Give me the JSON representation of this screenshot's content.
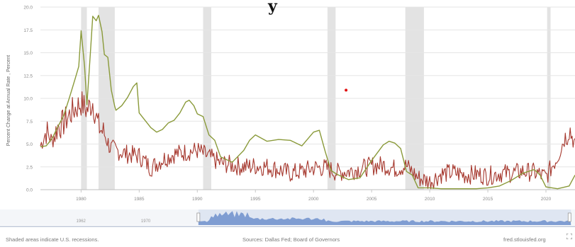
{
  "header": {
    "title_fragment": "y"
  },
  "chart_data": {
    "type": "line",
    "title": "",
    "xlabel": "",
    "ylabel": "Percent Change at Annual Rate , Percent",
    "xlim": [
      1976.5,
      2022.5
    ],
    "ylim": [
      0,
      20
    ],
    "yticks": [
      "0.0",
      "2.5",
      "5.0",
      "7.5",
      "10.0",
      "12.5",
      "15.0",
      "17.5",
      "20.0"
    ],
    "xticks": [
      "1980",
      "1985",
      "1990",
      "1995",
      "2000",
      "2005",
      "2010",
      "2015",
      "2020"
    ],
    "grid": "horizontal",
    "legend": "none",
    "recessions": [
      [
        1980.0,
        1980.5
      ],
      [
        1981.5,
        1982.9
      ],
      [
        1990.5,
        1991.2
      ],
      [
        2001.2,
        2001.9
      ],
      [
        2007.9,
        2009.5
      ],
      [
        2020.1,
        2020.4
      ]
    ],
    "series": [
      {
        "color": "#a6382e",
        "points": [
          [
            1976.5,
            4.8
          ],
          [
            1977,
            6.4
          ],
          [
            1977.5,
            5.3
          ],
          [
            1978,
            6.9
          ],
          [
            1978.5,
            7.3
          ],
          [
            1979,
            8.2
          ],
          [
            1979.5,
            8.9
          ],
          [
            1980,
            9.5
          ],
          [
            1980.5,
            8.7
          ],
          [
            1981,
            9.6
          ],
          [
            1981.5,
            6.9
          ],
          [
            1982,
            6.1
          ],
          [
            1982.5,
            4.6
          ],
          [
            1983,
            4.3
          ],
          [
            1983.5,
            4.1
          ],
          [
            1984,
            3.9
          ],
          [
            1985,
            3.7
          ],
          [
            1986,
            2.4
          ],
          [
            1987,
            3.3
          ],
          [
            1988,
            3.9
          ],
          [
            1989,
            4.1
          ],
          [
            1990,
            4.3
          ],
          [
            1991,
            3.6
          ],
          [
            1992,
            2.9
          ],
          [
            1993,
            2.7
          ],
          [
            1994,
            2.5
          ],
          [
            1995,
            2.6
          ],
          [
            1996,
            2.5
          ],
          [
            1997,
            2.2
          ],
          [
            1998,
            1.8
          ],
          [
            1999,
            2.0
          ],
          [
            2000,
            2.4
          ],
          [
            2001,
            2.4
          ],
          [
            2002,
            1.9
          ],
          [
            2003,
            2.0
          ],
          [
            2004,
            2.3
          ],
          [
            2005,
            2.6
          ],
          [
            2006,
            2.7
          ],
          [
            2007,
            2.3
          ],
          [
            2008,
            2.6
          ],
          [
            2009,
            1.3
          ],
          [
            2010,
            0.9
          ],
          [
            2011,
            1.7
          ],
          [
            2012,
            1.9
          ],
          [
            2013,
            1.6
          ],
          [
            2014,
            1.7
          ],
          [
            2015,
            1.5
          ],
          [
            2016,
            1.8
          ],
          [
            2017,
            1.8
          ],
          [
            2018,
            2.0
          ],
          [
            2019,
            1.9
          ],
          [
            2020,
            1.4
          ],
          [
            2021,
            3.6
          ],
          [
            2021.5,
            5.3
          ],
          [
            2022,
            6.8
          ],
          [
            2022.5,
            4.9
          ]
        ]
      },
      {
        "color": "#8a9a3a",
        "points": [
          [
            1976.5,
            4.7
          ],
          [
            1977,
            4.8
          ],
          [
            1977.5,
            5.6
          ],
          [
            1978,
            6.9
          ],
          [
            1978.5,
            8.1
          ],
          [
            1979,
            10.1
          ],
          [
            1979.5,
            12.2
          ],
          [
            1979.8,
            13.5
          ],
          [
            1980,
            17.4
          ],
          [
            1980.3,
            13.5
          ],
          [
            1980.5,
            9.3
          ],
          [
            1980.8,
            15.0
          ],
          [
            1981,
            19.0
          ],
          [
            1981.3,
            18.5
          ],
          [
            1981.5,
            19.1
          ],
          [
            1981.8,
            17.3
          ],
          [
            1982,
            14.8
          ],
          [
            1982.3,
            14.5
          ],
          [
            1982.6,
            10.9
          ],
          [
            1982.9,
            9.1
          ],
          [
            1983,
            8.7
          ],
          [
            1983.5,
            9.2
          ],
          [
            1984,
            10.1
          ],
          [
            1984.5,
            11.3
          ],
          [
            1984.8,
            11.7
          ],
          [
            1985,
            8.4
          ],
          [
            1986,
            6.8
          ],
          [
            1986.5,
            6.3
          ],
          [
            1987,
            6.6
          ],
          [
            1987.5,
            7.3
          ],
          [
            1988,
            7.6
          ],
          [
            1988.5,
            8.4
          ],
          [
            1989,
            9.6
          ],
          [
            1989.3,
            9.8
          ],
          [
            1989.7,
            9.2
          ],
          [
            1990,
            8.3
          ],
          [
            1990.5,
            8.0
          ],
          [
            1991,
            6.0
          ],
          [
            1991.5,
            5.4
          ],
          [
            1992,
            3.6
          ],
          [
            1993,
            3.0
          ],
          [
            1994,
            4.3
          ],
          [
            1994.5,
            5.4
          ],
          [
            1995,
            6.0
          ],
          [
            1996,
            5.3
          ],
          [
            1997,
            5.5
          ],
          [
            1998,
            5.4
          ],
          [
            1999,
            4.8
          ],
          [
            2000,
            6.3
          ],
          [
            2000.5,
            6.5
          ],
          [
            2001,
            4.2
          ],
          [
            2001.5,
            2.1
          ],
          [
            2002,
            1.7
          ],
          [
            2003,
            1.1
          ],
          [
            2004,
            1.3
          ],
          [
            2005,
            3.2
          ],
          [
            2006,
            4.9
          ],
          [
            2006.5,
            5.3
          ],
          [
            2007,
            5.1
          ],
          [
            2007.5,
            4.5
          ],
          [
            2008,
            2.0
          ],
          [
            2008.5,
            1.6
          ],
          [
            2009,
            0.2
          ],
          [
            2010,
            0.2
          ],
          [
            2011,
            0.1
          ],
          [
            2012,
            0.1
          ],
          [
            2013,
            0.1
          ],
          [
            2014,
            0.1
          ],
          [
            2015,
            0.2
          ],
          [
            2016,
            0.4
          ],
          [
            2017,
            1.0
          ],
          [
            2018,
            1.8
          ],
          [
            2019,
            2.2
          ],
          [
            2019.5,
            1.6
          ],
          [
            2020,
            0.3
          ],
          [
            2021,
            0.1
          ],
          [
            2022,
            0.4
          ],
          [
            2022.5,
            1.6
          ]
        ]
      }
    ],
    "annotations": [
      {
        "type": "point",
        "x": 2002.8,
        "y": 10.9,
        "color": "#e01010"
      }
    ]
  },
  "navigator": {
    "labels": [
      "1962",
      "1970"
    ],
    "label_years": [
      1962,
      1970
    ],
    "selection_years": [
      1976.5,
      2022.5
    ],
    "range_years": [
      1952,
      2023
    ]
  },
  "footer": {
    "note": "Shaded areas indicate U.S. recessions.",
    "source": "Sources: Dallas Fed; Board of Governors",
    "credit": "fred.stlouisfed.org"
  },
  "icons": {
    "fullscreen": "fullscreen-icon"
  }
}
